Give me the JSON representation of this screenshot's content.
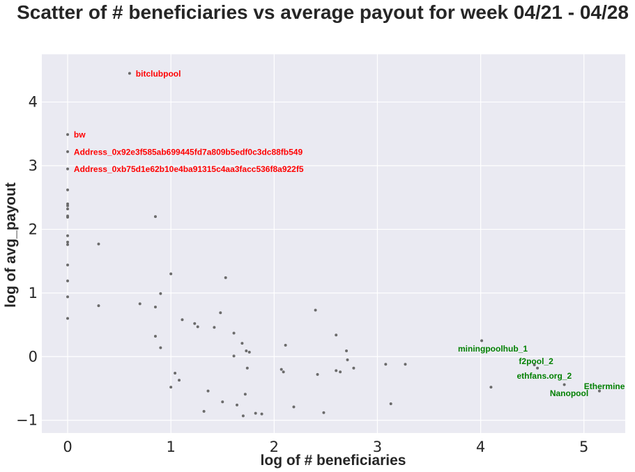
{
  "chart_data": {
    "type": "scatter",
    "title": "Scatter of # beneficiaries vs average payout for week 04/21 - 04/28",
    "xlabel": "log of # beneficiaries",
    "ylabel": "log of avg_payout",
    "xlim": [
      -0.25,
      5.4
    ],
    "ylim": [
      -1.2,
      4.75
    ],
    "xticks": [
      0,
      1,
      2,
      3,
      4,
      5
    ],
    "xtick_labels": [
      "0",
      "1",
      "2",
      "3",
      "4",
      "5"
    ],
    "yticks": [
      -1,
      0,
      1,
      2,
      3,
      4
    ],
    "ytick_labels": [
      "−1",
      "0",
      "1",
      "2",
      "3",
      "4"
    ],
    "grid": true,
    "background_color": "#eaeaf2",
    "grid_color": "#ffffff",
    "point_color": "#6b6b6b",
    "points": [
      {
        "x": 0.6,
        "y": 4.45
      },
      {
        "x": 0.0,
        "y": 3.49
      },
      {
        "x": 0.0,
        "y": 3.22
      },
      {
        "x": 0.0,
        "y": 2.95
      },
      {
        "x": 0.0,
        "y": 2.62
      },
      {
        "x": 0.0,
        "y": 2.4
      },
      {
        "x": 0.0,
        "y": 2.37
      },
      {
        "x": 0.0,
        "y": 2.32
      },
      {
        "x": 0.0,
        "y": 2.21
      },
      {
        "x": 0.0,
        "y": 2.19
      },
      {
        "x": 0.0,
        "y": 1.9
      },
      {
        "x": 0.0,
        "y": 1.8
      },
      {
        "x": 0.0,
        "y": 1.76
      },
      {
        "x": 0.0,
        "y": 1.44
      },
      {
        "x": 0.0,
        "y": 1.19
      },
      {
        "x": 0.0,
        "y": 0.94
      },
      {
        "x": 0.0,
        "y": 0.6
      },
      {
        "x": 0.3,
        "y": 1.77
      },
      {
        "x": 0.3,
        "y": 0.8
      },
      {
        "x": 0.7,
        "y": 0.83
      },
      {
        "x": 0.85,
        "y": 2.2
      },
      {
        "x": 0.85,
        "y": 0.78
      },
      {
        "x": 0.85,
        "y": 0.32
      },
      {
        "x": 0.9,
        "y": 0.99
      },
      {
        "x": 0.9,
        "y": 0.14
      },
      {
        "x": 1.0,
        "y": 1.3
      },
      {
        "x": 1.0,
        "y": -0.48
      },
      {
        "x": 1.04,
        "y": -0.26
      },
      {
        "x": 1.08,
        "y": -0.37
      },
      {
        "x": 1.11,
        "y": 0.58
      },
      {
        "x": 1.23,
        "y": 0.52
      },
      {
        "x": 1.26,
        "y": 0.47
      },
      {
        "x": 1.32,
        "y": -0.86
      },
      {
        "x": 1.36,
        "y": -0.54
      },
      {
        "x": 1.42,
        "y": 0.46
      },
      {
        "x": 1.48,
        "y": 0.69
      },
      {
        "x": 1.5,
        "y": -0.71
      },
      {
        "x": 1.53,
        "y": 1.24
      },
      {
        "x": 1.61,
        "y": 0.37
      },
      {
        "x": 1.61,
        "y": 0.01
      },
      {
        "x": 1.64,
        "y": -0.76
      },
      {
        "x": 1.69,
        "y": 0.21
      },
      {
        "x": 1.7,
        "y": -0.93
      },
      {
        "x": 1.72,
        "y": -0.59
      },
      {
        "x": 1.73,
        "y": 0.09
      },
      {
        "x": 1.74,
        "y": -0.18
      },
      {
        "x": 1.76,
        "y": 0.07
      },
      {
        "x": 1.82,
        "y": -0.89
      },
      {
        "x": 1.88,
        "y": -0.9
      },
      {
        "x": 2.07,
        "y": -0.2
      },
      {
        "x": 2.09,
        "y": -0.24
      },
      {
        "x": 2.11,
        "y": 0.18
      },
      {
        "x": 2.19,
        "y": -0.79
      },
      {
        "x": 2.4,
        "y": 0.73
      },
      {
        "x": 2.42,
        "y": -0.28
      },
      {
        "x": 2.48,
        "y": -0.88
      },
      {
        "x": 2.6,
        "y": 0.34
      },
      {
        "x": 2.6,
        "y": -0.22
      },
      {
        "x": 2.64,
        "y": -0.24
      },
      {
        "x": 2.7,
        "y": 0.09
      },
      {
        "x": 2.71,
        "y": -0.05
      },
      {
        "x": 2.77,
        "y": -0.18
      },
      {
        "x": 3.08,
        "y": -0.12
      },
      {
        "x": 3.13,
        "y": -0.74
      },
      {
        "x": 3.27,
        "y": -0.12
      },
      {
        "x": 4.01,
        "y": 0.25
      },
      {
        "x": 4.1,
        "y": -0.48
      },
      {
        "x": 4.52,
        "y": -0.13
      },
      {
        "x": 4.55,
        "y": -0.18
      },
      {
        "x": 4.81,
        "y": -0.44
      },
      {
        "x": 5.15,
        "y": -0.54
      }
    ],
    "annotations": [
      {
        "text": "bitclubpool",
        "x": 0.66,
        "y": 4.45,
        "color": "#ff0000"
      },
      {
        "text": "bw",
        "x": 0.06,
        "y": 3.49,
        "color": "#ff0000"
      },
      {
        "text": "Address_0x92e3f585ab699445fd7a809b5edf0c3dc88fb549",
        "x": 0.06,
        "y": 3.22,
        "color": "#ff0000"
      },
      {
        "text": "Address_0xb75d1e62b10e4ba91315c4aa3facc536f8a922f5",
        "x": 0.06,
        "y": 2.95,
        "color": "#ff0000"
      },
      {
        "text": "miningpoolhub_1",
        "x": 3.78,
        "y": 0.13,
        "color": "#008000"
      },
      {
        "text": "f2pool_2",
        "x": 4.37,
        "y": -0.07,
        "color": "#008000"
      },
      {
        "text": "ethfans.org_2",
        "x": 4.35,
        "y": -0.3,
        "color": "#008000"
      },
      {
        "text": "Ethermine",
        "x": 5.0,
        "y": -0.46,
        "color": "#008000"
      },
      {
        "text": "Nanopool",
        "x": 4.67,
        "y": -0.57,
        "color": "#008000"
      }
    ]
  }
}
